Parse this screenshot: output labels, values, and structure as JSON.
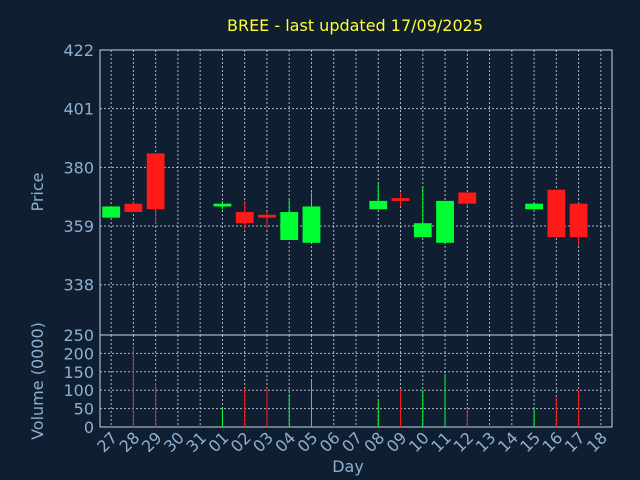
{
  "chart_data": {
    "type": "candlestick",
    "title": "BREE - last updated 17/09/2025",
    "xlabel": "Day",
    "price_ylabel": "Price",
    "volume_ylabel": "Volume (0000)",
    "price_ylim": [
      320,
      422
    ],
    "price_ticks": [
      338,
      359,
      380,
      401,
      422
    ],
    "volume_ylim": [
      0,
      250
    ],
    "volume_ticks": [
      0,
      50,
      100,
      150,
      200,
      250
    ],
    "grid": true,
    "colors": {
      "up": "#00ff33",
      "down": "#ff1a1a",
      "title": "#ffff33",
      "axis_text": "#8fb0d0"
    },
    "x_labels": [
      "27",
      "28",
      "29",
      "30",
      "31",
      "01",
      "02",
      "03",
      "04",
      "05",
      "06",
      "07",
      "08",
      "09",
      "10",
      "11",
      "12",
      "13",
      "14",
      "15",
      "16",
      "17",
      "18"
    ],
    "candles": [
      {
        "day": "27",
        "open": 362,
        "high": 366,
        "low": 362,
        "close": 366
      },
      {
        "day": "28",
        "open": 367,
        "high": 368,
        "low": 364,
        "close": 364
      },
      {
        "day": "29",
        "open": 385,
        "high": 385,
        "low": 360,
        "close": 365
      },
      {
        "day": "01",
        "open": 366,
        "high": 368,
        "low": 365,
        "close": 367
      },
      {
        "day": "02",
        "open": 364,
        "high": 368,
        "low": 358,
        "close": 360
      },
      {
        "day": "03",
        "open": 363,
        "high": 364,
        "low": 358,
        "close": 362
      },
      {
        "day": "04",
        "open": 354,
        "high": 369,
        "low": 354,
        "close": 364
      },
      {
        "day": "05",
        "open": 353,
        "high": 371,
        "low": 353,
        "close": 366
      },
      {
        "day": "08",
        "open": 365,
        "high": 374,
        "low": 365,
        "close": 368
      },
      {
        "day": "09",
        "open": 369,
        "high": 371,
        "low": 366,
        "close": 368
      },
      {
        "day": "10",
        "open": 355,
        "high": 373,
        "low": 355,
        "close": 360
      },
      {
        "day": "11",
        "open": 353,
        "high": 368,
        "low": 353,
        "close": 368
      },
      {
        "day": "12",
        "open": 371,
        "high": 371,
        "low": 366,
        "close": 367
      },
      {
        "day": "15",
        "open": 365,
        "high": 367,
        "low": 364,
        "close": 367
      },
      {
        "day": "16",
        "open": 372,
        "high": 372,
        "low": 355,
        "close": 355
      },
      {
        "day": "17",
        "open": 367,
        "high": 367,
        "low": 352,
        "close": 355
      }
    ],
    "volume": [
      {
        "day": "28",
        "value": 220,
        "dir": "down"
      },
      {
        "day": "29",
        "value": 120,
        "dir": "down"
      },
      {
        "day": "01",
        "value": 50,
        "dir": "up"
      },
      {
        "day": "02",
        "value": 105,
        "dir": "down"
      },
      {
        "day": "03",
        "value": 105,
        "dir": "down"
      },
      {
        "day": "04",
        "value": 90,
        "dir": "up"
      },
      {
        "day": "05",
        "value": 130,
        "dir": "up"
      },
      {
        "day": "08",
        "value": 70,
        "dir": "up"
      },
      {
        "day": "09",
        "value": 100,
        "dir": "down"
      },
      {
        "day": "10",
        "value": 100,
        "dir": "up"
      },
      {
        "day": "11",
        "value": 145,
        "dir": "up"
      },
      {
        "day": "12",
        "value": 50,
        "dir": "down"
      },
      {
        "day": "15",
        "value": 55,
        "dir": "up"
      },
      {
        "day": "16",
        "value": 80,
        "dir": "down"
      },
      {
        "day": "17",
        "value": 100,
        "dir": "down"
      }
    ]
  }
}
